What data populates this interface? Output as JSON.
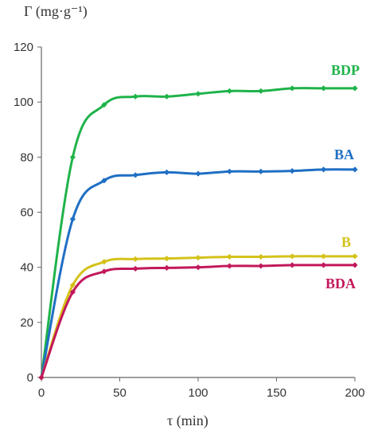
{
  "chart_data": {
    "type": "line",
    "ylabel": "Γ (mg·g⁻¹)",
    "xlabel": "τ (min)",
    "xlim": [
      0,
      200
    ],
    "ylim": [
      0,
      120
    ],
    "x_ticks": [
      "0",
      "50",
      "100",
      "150",
      "200"
    ],
    "y_ticks": [
      "0",
      "20",
      "40",
      "60",
      "80",
      "100",
      "120"
    ],
    "grid": false,
    "legend": "inline labels at right end of each series",
    "series": [
      {
        "name": "BDP",
        "color": "#1fb34a",
        "x": [
          0,
          20,
          40,
          60,
          80,
          100,
          120,
          140,
          160,
          180,
          200
        ],
        "y": [
          0,
          80,
          99,
          102,
          102,
          103,
          104,
          104,
          105,
          105,
          105
        ]
      },
      {
        "name": "BA",
        "color": "#1f6fc4",
        "x": [
          0,
          20,
          40,
          60,
          80,
          100,
          120,
          140,
          160,
          180,
          200
        ],
        "y": [
          0,
          57.5,
          71.5,
          73.5,
          74.5,
          74,
          74.8,
          74.8,
          75,
          75.5,
          75.5
        ]
      },
      {
        "name": "B",
        "color": "#d4c21a",
        "x": [
          0,
          20,
          40,
          60,
          80,
          100,
          120,
          140,
          160,
          180,
          200
        ],
        "y": [
          0,
          33.5,
          42,
          43,
          43.2,
          43.5,
          43.8,
          43.8,
          44,
          44,
          44
        ]
      },
      {
        "name": "BDA",
        "color": "#c2185b",
        "x": [
          0,
          20,
          40,
          60,
          80,
          100,
          120,
          140,
          160,
          180,
          200
        ],
        "y": [
          0,
          31,
          38.5,
          39.5,
          39.8,
          40,
          40.5,
          40.5,
          40.8,
          40.8,
          40.8
        ]
      }
    ]
  }
}
